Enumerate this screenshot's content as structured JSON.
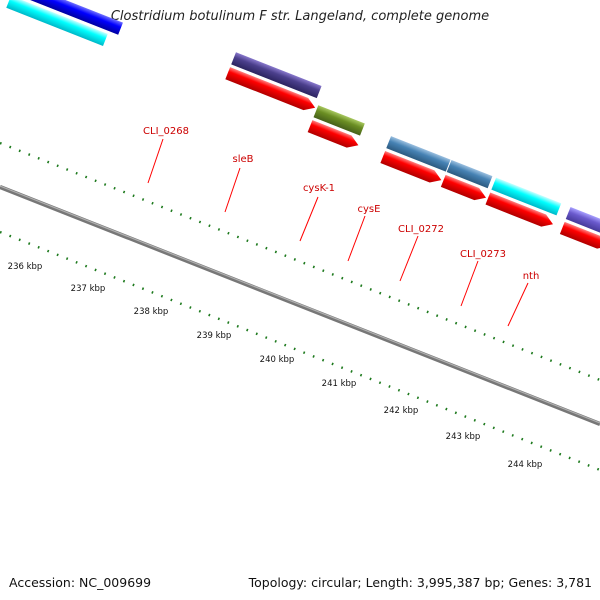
{
  "title": "Clostridium botulinum F str. Langeland, complete genome",
  "accession": "Accession: NC_009699",
  "summary": "Topology: circular; Length: 3,995,387 bp; Genes: 3,781",
  "ruler": [
    "236 kbp",
    "237 kbp",
    "238 kbp",
    "239 kbp",
    "240 kbp",
    "241 kbp",
    "242 kbp",
    "243 kbp",
    "244 kbp"
  ],
  "features": [
    {
      "name": "sleB"
    },
    {
      "name": "CLI_0268"
    },
    {
      "name": "cysK-1"
    },
    {
      "name": "cysE"
    },
    {
      "name": "CLI_0272"
    },
    {
      "name": "CLI_0273"
    },
    {
      "name": "nth"
    }
  ],
  "colors": {
    "cds": "#ff0000",
    "label": "#cc0000",
    "backbone": "#888888",
    "tick": "#1e7a1e",
    "purple": "#4b3f8c",
    "olive": "#6b8e23",
    "steelblue": "#4682b4",
    "cyan": "#00ffff",
    "violet": "#6a5acd",
    "magenta": "#ff1493",
    "blue": "#0000ff",
    "gray": "#cccccc"
  }
}
